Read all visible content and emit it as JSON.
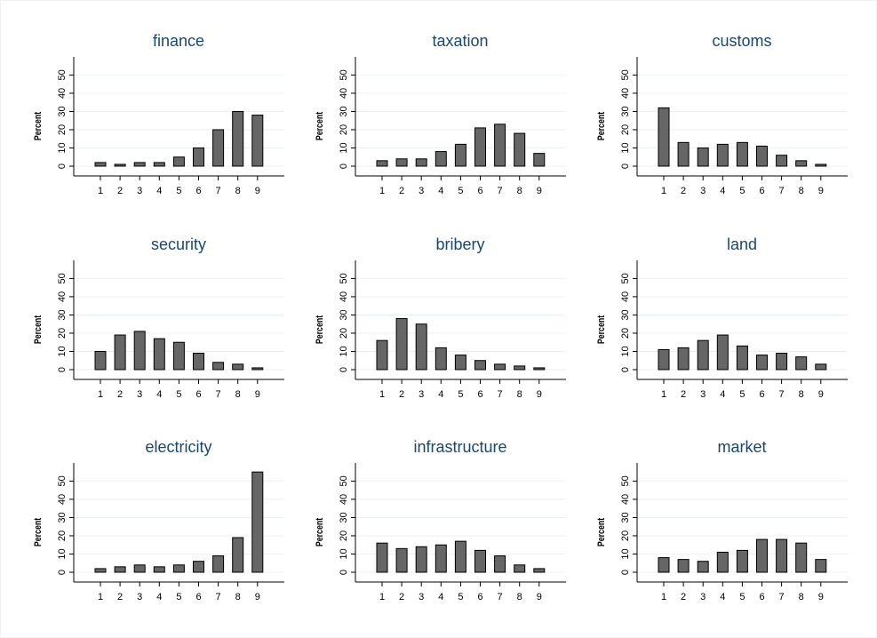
{
  "chart_data": [
    {
      "type": "bar",
      "title": "finance",
      "ylabel": "Percent",
      "categories": [
        "1",
        "2",
        "3",
        "4",
        "5",
        "6",
        "7",
        "8",
        "9"
      ],
      "values": [
        2,
        1,
        2,
        2,
        5,
        10,
        20,
        30,
        28
      ],
      "color": "#666666",
      "ylim": [
        0,
        58
      ],
      "yticks": [
        0,
        10,
        20,
        30,
        40,
        50
      ],
      "grid": true
    },
    {
      "type": "bar",
      "title": "taxation",
      "ylabel": "Percent",
      "categories": [
        "1",
        "2",
        "3",
        "4",
        "5",
        "6",
        "7",
        "8",
        "9"
      ],
      "values": [
        3,
        4,
        4,
        8,
        12,
        21,
        23,
        18,
        7
      ],
      "color": "#666666",
      "ylim": [
        0,
        58
      ],
      "yticks": [
        0,
        10,
        20,
        30,
        40,
        50
      ],
      "grid": true
    },
    {
      "type": "bar",
      "title": "customs",
      "ylabel": "Percent",
      "categories": [
        "1",
        "2",
        "3",
        "4",
        "5",
        "6",
        "7",
        "8",
        "9"
      ],
      "values": [
        32,
        13,
        10,
        12,
        13,
        11,
        6,
        3,
        1
      ],
      "color": "#666666",
      "ylim": [
        0,
        58
      ],
      "yticks": [
        0,
        10,
        20,
        30,
        40,
        50
      ],
      "grid": true
    },
    {
      "type": "bar",
      "title": "security",
      "ylabel": "Percent",
      "categories": [
        "1",
        "2",
        "3",
        "4",
        "5",
        "6",
        "7",
        "8",
        "9"
      ],
      "values": [
        10,
        19,
        21,
        17,
        15,
        9,
        4,
        3,
        1
      ],
      "color": "#666666",
      "ylim": [
        0,
        58
      ],
      "yticks": [
        0,
        10,
        20,
        30,
        40,
        50
      ],
      "grid": true
    },
    {
      "type": "bar",
      "title": "bribery",
      "ylabel": "Percent",
      "categories": [
        "1",
        "2",
        "3",
        "4",
        "5",
        "6",
        "7",
        "8",
        "9"
      ],
      "values": [
        16,
        28,
        25,
        12,
        8,
        5,
        3,
        2,
        1
      ],
      "color": "#666666",
      "ylim": [
        0,
        58
      ],
      "yticks": [
        0,
        10,
        20,
        30,
        40,
        50
      ],
      "grid": true
    },
    {
      "type": "bar",
      "title": "land",
      "ylabel": "Percent",
      "categories": [
        "1",
        "2",
        "3",
        "4",
        "5",
        "6",
        "7",
        "8",
        "9"
      ],
      "values": [
        11,
        12,
        16,
        19,
        13,
        8,
        9,
        7,
        3
      ],
      "color": "#666666",
      "ylim": [
        0,
        58
      ],
      "yticks": [
        0,
        10,
        20,
        30,
        40,
        50
      ],
      "grid": true
    },
    {
      "type": "bar",
      "title": "electricity",
      "ylabel": "Percent",
      "categories": [
        "1",
        "2",
        "3",
        "4",
        "5",
        "6",
        "7",
        "8",
        "9"
      ],
      "values": [
        2,
        3,
        4,
        3,
        4,
        6,
        9,
        19,
        55
      ],
      "color": "#666666",
      "ylim": [
        0,
        58
      ],
      "yticks": [
        0,
        10,
        20,
        30,
        40,
        50
      ],
      "grid": true
    },
    {
      "type": "bar",
      "title": "infrastructure",
      "ylabel": "Percent",
      "categories": [
        "1",
        "2",
        "3",
        "4",
        "5",
        "6",
        "7",
        "8",
        "9"
      ],
      "values": [
        16,
        13,
        14,
        15,
        17,
        12,
        9,
        4,
        2
      ],
      "color": "#666666",
      "ylim": [
        0,
        58
      ],
      "yticks": [
        0,
        10,
        20,
        30,
        40,
        50
      ],
      "grid": true
    },
    {
      "type": "bar",
      "title": "market",
      "ylabel": "Percent",
      "categories": [
        "1",
        "2",
        "3",
        "4",
        "5",
        "6",
        "7",
        "8",
        "9"
      ],
      "values": [
        8,
        7,
        6,
        11,
        12,
        18,
        18,
        16,
        7
      ],
      "color": "#666666",
      "ylim": [
        0,
        58
      ],
      "yticks": [
        0,
        10,
        20,
        30,
        40,
        50
      ],
      "grid": true
    }
  ]
}
